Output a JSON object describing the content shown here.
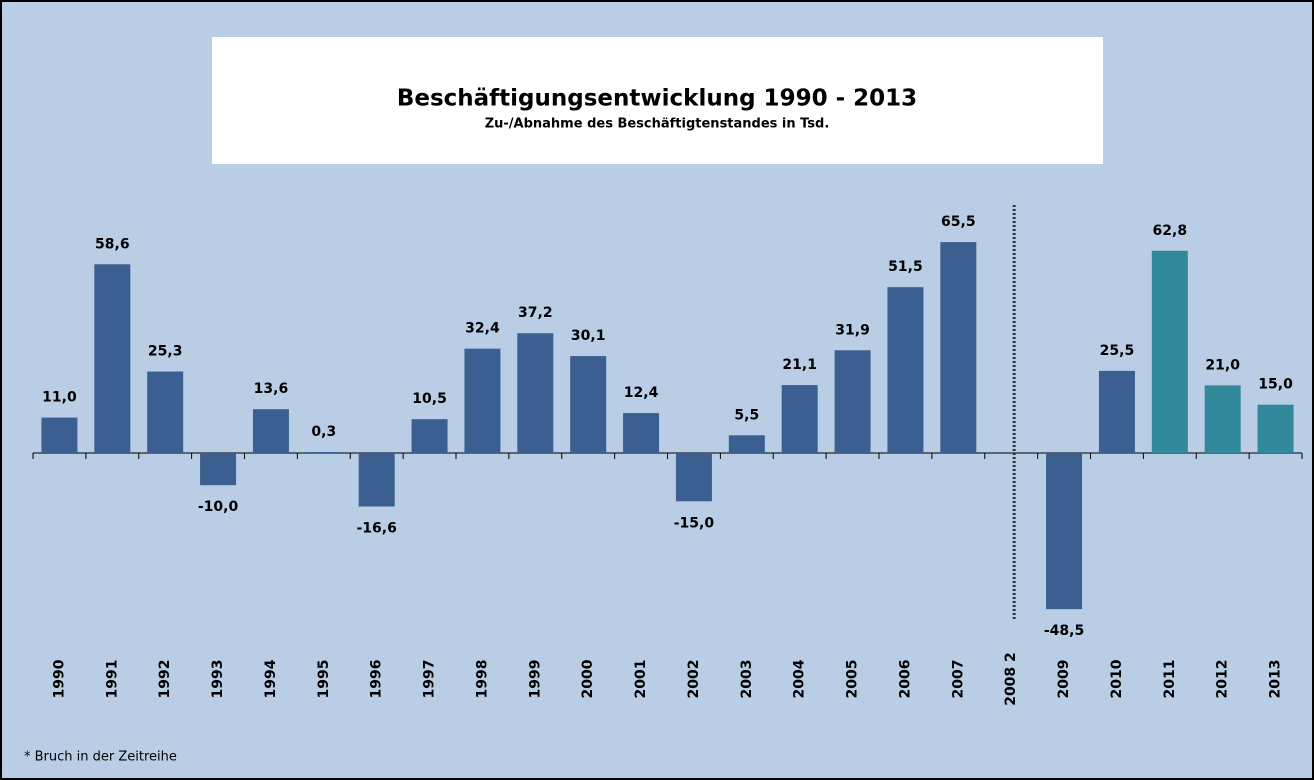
{
  "chart_data": {
    "type": "bar",
    "title": "Beschäftigungsentwicklung 1990 - 2013",
    "subtitle": "Zu-/Abnahme des Beschäftigtenstandes in Tsd.",
    "footnote": "* Bruch in der Zeitreihe",
    "categories": [
      "1990",
      "1991",
      "1992",
      "1993",
      "1994",
      "1995",
      "1996",
      "1997",
      "1998",
      "1999",
      "2000",
      "2001",
      "2002",
      "2003",
      "2004",
      "2005",
      "2006",
      "2007",
      "2008 2",
      "2009",
      "2010",
      "2011",
      "2012",
      "2013"
    ],
    "values": [
      11.0,
      58.6,
      25.3,
      -10.0,
      13.6,
      0.3,
      -16.6,
      10.5,
      32.4,
      37.2,
      30.1,
      12.4,
      -15.0,
      5.5,
      21.1,
      31.9,
      51.5,
      65.5,
      null,
      -48.5,
      25.5,
      62.8,
      21.0,
      15.0
    ],
    "value_labels": [
      "11,0",
      "58,6",
      "25,3",
      "-10,0",
      "13,6",
      "0,3",
      "-16,6",
      "10,5",
      "32,4",
      "37,2",
      "30,1",
      "12,4",
      "-15,0",
      "5,5",
      "21,1",
      "31,9",
      "51,5",
      "65,5",
      null,
      "-48,5",
      "25,5",
      "62,8",
      "21,0",
      "15,0"
    ],
    "colors": [
      "#3b5f91",
      "#3b5f91",
      "#3b5f91",
      "#3b5f91",
      "#3b5f91",
      "#3b5f91",
      "#3b5f91",
      "#3b5f91",
      "#3b5f91",
      "#3b5f91",
      "#3b5f91",
      "#3b5f91",
      "#3b5f91",
      "#3b5f91",
      "#3b5f91",
      "#3b5f91",
      "#3b5f91",
      "#3b5f91",
      null,
      "#3b5f91",
      "#3b5f91",
      "#31889a",
      "#31889a",
      "#31889a"
    ]
  }
}
